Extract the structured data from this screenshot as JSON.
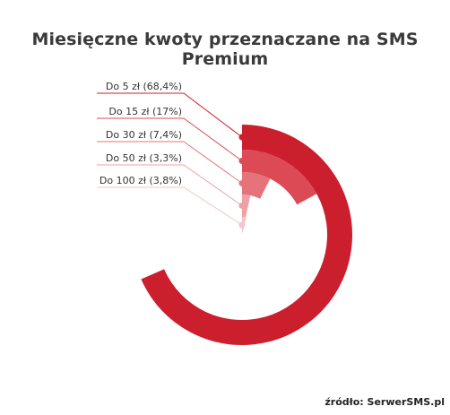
{
  "title": "Miesięczne kwoty przeznaczane na SMS Premium",
  "source": "źródło: SerwerSMS.pl",
  "chart_data": {
    "type": "radial-bar",
    "title": "Miesięczne kwoty przeznaczane na SMS Premium",
    "max": 100,
    "series": [
      {
        "label": "Do 5 zł (68,4%)",
        "value": 68.4,
        "color": "#cc1f2d"
      },
      {
        "label": "Do 15 zł (17%)",
        "value": 17,
        "color": "#dc4a55"
      },
      {
        "label": "Do 30 zł (7,4%)",
        "value": 7.4,
        "color": "#e6737b"
      },
      {
        "label": "Do 50 zł (3,3%)",
        "value": 3.3,
        "color": "#efa1a6"
      },
      {
        "label": "Do 100 zł (3,8%)",
        "value": 3.8,
        "color": "#f4c4c7"
      }
    ]
  }
}
